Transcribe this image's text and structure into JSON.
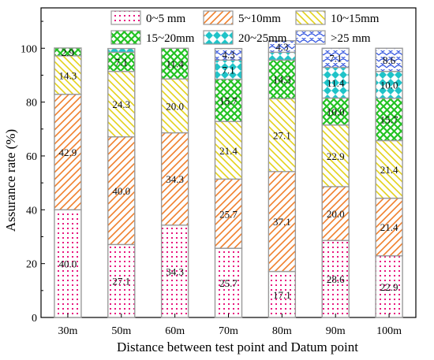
{
  "chart_data": {
    "type": "bar",
    "stacked": true,
    "xlabel": "Distance between test point and Datum point",
    "ylabel": "Assurance rate (%)",
    "ylim": [
      0,
      115
    ],
    "yticks": [
      0,
      20,
      40,
      60,
      80,
      100
    ],
    "grid": false,
    "legend_position": "top",
    "categories": [
      "30m",
      "50m",
      "60m",
      "70m",
      "80m",
      "90m",
      "100m"
    ],
    "series": [
      {
        "name": "0~5  mm",
        "color": "#e8177f",
        "pattern": "dots",
        "values": [
          40.0,
          27.1,
          34.3,
          25.7,
          17.1,
          28.6,
          22.9
        ],
        "labels": [
          "40.0",
          "27.1",
          "34.3",
          "25.7",
          "17.1",
          "28.6",
          "22.9"
        ]
      },
      {
        "name": "5~10mm",
        "color": "#f07f2b",
        "pattern": "diagonal",
        "values": [
          42.9,
          40.0,
          34.3,
          25.7,
          37.1,
          20.0,
          21.4
        ],
        "labels": [
          "42.9",
          "40.0",
          "34.3",
          "25.7",
          "37.1",
          "20.0",
          "21.4"
        ]
      },
      {
        "name": "10~15mm",
        "color": "#e3d21a",
        "pattern": "backdiagonal",
        "values": [
          14.3,
          24.3,
          20.0,
          21.4,
          27.1,
          22.9,
          21.4
        ],
        "labels": [
          "14.3",
          "24.3",
          "20.0",
          "21.4",
          "27.1",
          "22.9",
          "21.4"
        ]
      },
      {
        "name": "15~20mm",
        "color": "#22c222",
        "pattern": "crosshatch",
        "values": [
          2.9,
          7.1,
          11.4,
          15.7,
          14.3,
          10.0,
          15.7
        ],
        "labels": [
          "2.9",
          "7.1",
          "11.4",
          "15.7",
          "14.3",
          "10.0",
          "15.7"
        ]
      },
      {
        "name": "20~25mm",
        "color": "#1fc3c8",
        "pattern": "diamonds",
        "values": [
          0,
          1.4,
          0,
          7.1,
          2.9,
          11.4,
          10.0
        ],
        "labels": [
          "",
          "",
          "",
          "7.1",
          "",
          "11.4",
          "10.0"
        ]
      },
      {
        "name": ">25  mm",
        "color": "#3557e0",
        "pattern": "scales",
        "values": [
          0,
          0,
          0,
          4.3,
          4.3,
          7.1,
          8.6
        ],
        "labels": [
          "",
          "",
          "",
          "4.3",
          "4.3",
          "7.1",
          "8.6"
        ]
      }
    ]
  }
}
